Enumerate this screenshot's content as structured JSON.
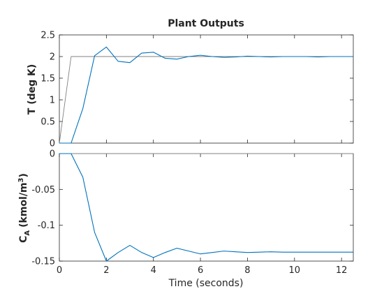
{
  "figure": {
    "title": "Plant Outputs"
  },
  "chart_data": [
    {
      "type": "line",
      "ylabel": "T (deg K)",
      "xlim": [
        0,
        12.5
      ],
      "ylim": [
        0,
        2.5
      ],
      "yticks": [
        "0",
        "0.5",
        "1",
        "1.5",
        "2",
        "2.5"
      ],
      "ytick_values": [
        0,
        0.5,
        1,
        1.5,
        2,
        2.5
      ],
      "grid": false,
      "series": [
        {
          "color": "#808080",
          "x": [
            0,
            0.5,
            12.5
          ],
          "y": [
            0,
            2,
            2
          ]
        },
        {
          "color": "#0072bd",
          "x": [
            0,
            0.5,
            1,
            1.5,
            2,
            2.5,
            3,
            3.5,
            4,
            4.5,
            5,
            5.5,
            6,
            6.5,
            7,
            7.5,
            8,
            8.5,
            9,
            9.5,
            10,
            10.5,
            11,
            11.5,
            12,
            12.5
          ],
          "y": [
            0,
            0,
            0.8,
            2.02,
            2.22,
            1.89,
            1.86,
            2.08,
            2.1,
            1.96,
            1.94,
            2.0,
            2.03,
            2.0,
            1.98,
            1.99,
            2.01,
            2.0,
            1.99,
            2.0,
            2.0,
            2.0,
            1.99,
            2.0,
            2.0,
            2.0
          ]
        }
      ]
    },
    {
      "type": "line",
      "ylabel": "C",
      "ylabel_sub": "A",
      "ylabel_unit": "(kmol/m",
      "ylabel_sup": "3",
      "ylabel_close": ")",
      "xlabel": "Time (seconds)",
      "xlim": [
        0,
        12.5
      ],
      "ylim": [
        -0.15,
        0
      ],
      "xticks": [
        "0",
        "2",
        "4",
        "6",
        "8",
        "10",
        "12"
      ],
      "xtick_values": [
        0,
        2,
        4,
        6,
        8,
        10,
        12
      ],
      "yticks": [
        "-0.15",
        "-0.1",
        "-0.05",
        "0"
      ],
      "ytick_values": [
        -0.15,
        -0.1,
        -0.05,
        0
      ],
      "grid": false,
      "series": [
        {
          "color": "#808080",
          "x": [
            0,
            12.5
          ],
          "y": [
            0,
            0
          ]
        },
        {
          "color": "#0072bd",
          "x": [
            0,
            0.5,
            1,
            1.5,
            2,
            2.5,
            3,
            3.5,
            4,
            4.5,
            5,
            5.5,
            6,
            6.5,
            7,
            7.5,
            8,
            8.5,
            9,
            9.5,
            10,
            10.5,
            11,
            11.5,
            12,
            12.5
          ],
          "y": [
            0,
            0,
            -0.033,
            -0.11,
            -0.15,
            -0.138,
            -0.128,
            -0.138,
            -0.145,
            -0.138,
            -0.132,
            -0.136,
            -0.14,
            -0.138,
            -0.136,
            -0.137,
            -0.138,
            -0.1375,
            -0.137,
            -0.1375,
            -0.1375,
            -0.1375,
            -0.1375,
            -0.1375,
            -0.1375,
            -0.1375
          ]
        }
      ]
    }
  ]
}
